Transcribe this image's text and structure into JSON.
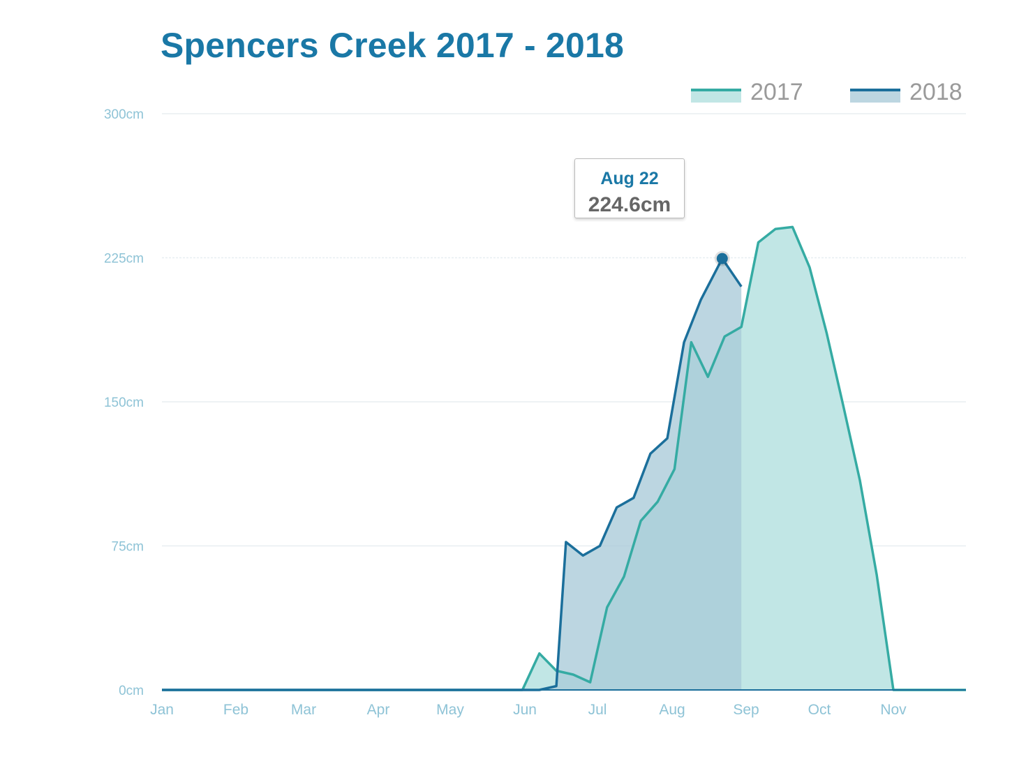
{
  "title": "Spencers Creek 2017 - 2018",
  "tooltip": {
    "date": "Aug 22",
    "value": "224.6cm"
  },
  "colors": {
    "title": "#1a78a6",
    "series_2017_line": "#35aba3",
    "series_2017_fill": "#c1e6e5",
    "series_2018_line": "#1b6f9b",
    "series_2018_fill": "#a9cad9",
    "axis_text": "#8ec3d6",
    "grid": "#e8eef1"
  },
  "chart_data": {
    "type": "area",
    "title": "Spencers Creek 2017 - 2018",
    "y_ticks": [
      "300cm",
      "225cm",
      "150cm",
      "75cm",
      "0cm"
    ],
    "y_tick_values": [
      300,
      225,
      150,
      75,
      0
    ],
    "ylim": [
      0,
      300
    ],
    "x_ticks": [
      "Jan",
      "Feb",
      "Mar",
      "Apr",
      "May",
      "Jun",
      "Jul",
      "Aug",
      "Sep",
      "Oct",
      "Nov"
    ],
    "x_range_days": [
      1,
      366
    ],
    "grid": true,
    "legend_position": "top-right",
    "series": [
      {
        "name": "2017",
        "points": [
          [
            1,
            0
          ],
          [
            121,
            0
          ],
          [
            151,
            0
          ],
          [
            158,
            19
          ],
          [
            165,
            10
          ],
          [
            172,
            8
          ],
          [
            179,
            4
          ],
          [
            186,
            43
          ],
          [
            193,
            59
          ],
          [
            200,
            88
          ],
          [
            207,
            98
          ],
          [
            214,
            115
          ],
          [
            221,
            181
          ],
          [
            228,
            163
          ],
          [
            235,
            184
          ],
          [
            242,
            189
          ],
          [
            249,
            233
          ],
          [
            256,
            240
          ],
          [
            263,
            241
          ],
          [
            270,
            220
          ],
          [
            277,
            186
          ],
          [
            284,
            148
          ],
          [
            291,
            109
          ],
          [
            298,
            60
          ],
          [
            305,
            0
          ],
          [
            366,
            0
          ]
        ]
      },
      {
        "name": "2018",
        "points": [
          [
            1,
            0
          ],
          [
            128,
            0
          ],
          [
            151,
            0
          ],
          [
            158,
            0
          ],
          [
            165,
            2
          ],
          [
            169,
            77
          ],
          [
            176,
            70
          ],
          [
            183,
            75
          ],
          [
            190,
            95
          ],
          [
            197,
            100
          ],
          [
            204,
            123
          ],
          [
            211,
            131
          ],
          [
            218,
            181
          ],
          [
            225,
            203
          ],
          [
            234,
            224.6
          ],
          [
            242,
            210
          ]
        ]
      }
    ],
    "highlight": {
      "series": "2018",
      "date": "Aug 22",
      "value": 224.6
    }
  }
}
